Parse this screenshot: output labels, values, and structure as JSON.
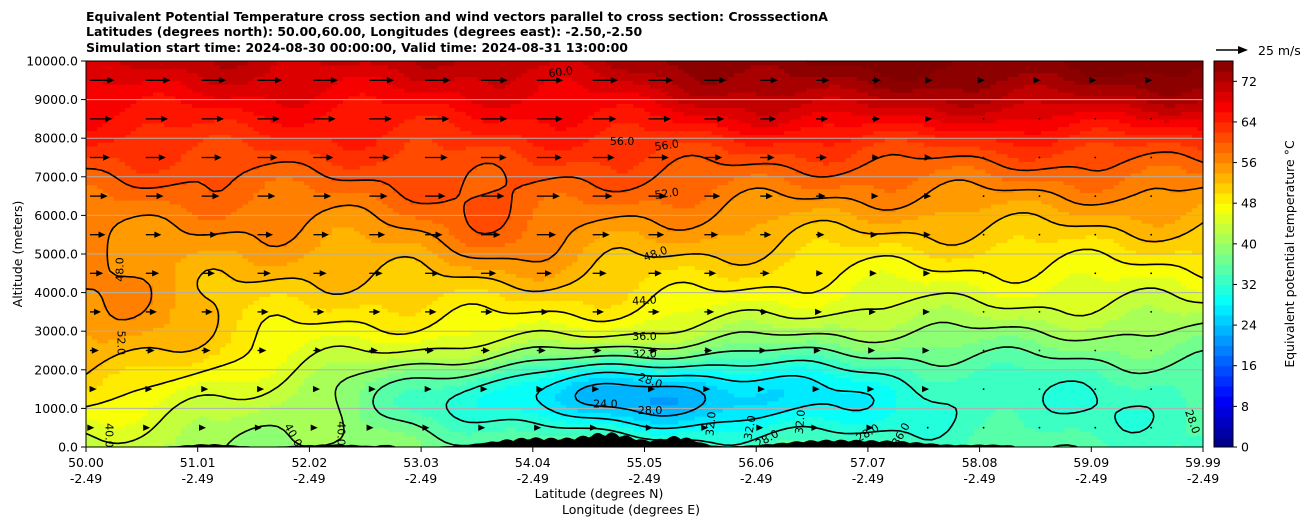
{
  "chart_data": {
    "type": "heatmap",
    "title_lines": [
      "Equivalent Potential Temperature cross section and wind vectors parallel to cross section: CrosssectionA",
      "Latitudes (degrees north): 50.00,60.00, Longitudes (degrees east): -2.50,-2.50",
      "Simulation start time: 2024-08-30 00:00:00, Valid time: 2024-08-31 13:00:00"
    ],
    "ylabel": "Altitude (meters)",
    "xlabel_lat": "Latitude (degrees N)",
    "xlabel_lon": "Longitude (degrees E)",
    "ylim": [
      0,
      10000
    ],
    "xlim": [
      0,
      10
    ],
    "yticks": [
      {
        "value": 0,
        "label": "0.0"
      },
      {
        "value": 1000,
        "label": "1000.0"
      },
      {
        "value": 2000,
        "label": "2000.0"
      },
      {
        "value": 3000,
        "label": "3000.0"
      },
      {
        "value": 4000,
        "label": "4000.0"
      },
      {
        "value": 5000,
        "label": "5000.0"
      },
      {
        "value": 6000,
        "label": "6000.0"
      },
      {
        "value": 7000,
        "label": "7000.0"
      },
      {
        "value": 8000,
        "label": "8000.0"
      },
      {
        "value": 9000,
        "label": "9000.0"
      },
      {
        "value": 10000,
        "label": "10000.0"
      }
    ],
    "xticks": [
      {
        "value": 0.0,
        "lat": "50.00",
        "lon": "-2.49"
      },
      {
        "value": 1.0,
        "lat": "51.01",
        "lon": "-2.49"
      },
      {
        "value": 2.0,
        "lat": "52.02",
        "lon": "-2.49"
      },
      {
        "value": 3.0,
        "lat": "53.03",
        "lon": "-2.49"
      },
      {
        "value": 4.0,
        "lat": "54.04",
        "lon": "-2.49"
      },
      {
        "value": 5.0,
        "lat": "55.05",
        "lon": "-2.49"
      },
      {
        "value": 6.0,
        "lat": "56.06",
        "lon": "-2.49"
      },
      {
        "value": 7.0,
        "lat": "57.07",
        "lon": "-2.49"
      },
      {
        "value": 8.0,
        "lat": "58.08",
        "lon": "-2.49"
      },
      {
        "value": 9.0,
        "lat": "59.09",
        "lon": "-2.49"
      },
      {
        "value": 10.0,
        "lat": "59.99",
        "lon": "-2.49"
      }
    ],
    "grid": "horizontal",
    "colorbar": {
      "label": "Equivalent potential temperature $^\\circ$C",
      "label_text": "Equivalent potential temperature °C",
      "min": 0,
      "max": 76,
      "step": 2,
      "ticks": [
        {
          "value": 0,
          "label": "0"
        },
        {
          "value": 8,
          "label": "8"
        },
        {
          "value": 16,
          "label": "16"
        },
        {
          "value": 24,
          "label": "24"
        },
        {
          "value": 32,
          "label": "32"
        },
        {
          "value": 40,
          "label": "40"
        },
        {
          "value": 48,
          "label": "48"
        },
        {
          "value": 56,
          "label": "56"
        },
        {
          "value": 64,
          "label": "64"
        },
        {
          "value": 72,
          "label": "72"
        }
      ],
      "colormap": "jet"
    },
    "quiver_key": {
      "label": "25 m/s",
      "speed": 25
    },
    "contour_levels": [
      24,
      28,
      32,
      36,
      40,
      44,
      48,
      52,
      56,
      60
    ],
    "contour_labels": [
      {
        "text": "60.0",
        "x": 4.25,
        "y": 9700,
        "rot": -8
      },
      {
        "text": "56.0",
        "x": 4.8,
        "y": 7900,
        "rot": 0
      },
      {
        "text": "56.0",
        "x": 5.2,
        "y": 7800,
        "rot": -8
      },
      {
        "text": "52.0",
        "x": 5.2,
        "y": 6550,
        "rot": -8
      },
      {
        "text": "48.0",
        "x": 5.1,
        "y": 4990,
        "rot": -20
      },
      {
        "text": "48.0",
        "x": 0.31,
        "y": 4600,
        "rot": -90
      },
      {
        "text": "44.0",
        "x": 5.0,
        "y": 3780,
        "rot": -3
      },
      {
        "text": "36.0",
        "x": 5.0,
        "y": 2850,
        "rot": 0
      },
      {
        "text": "32.0",
        "x": 5.0,
        "y": 2400,
        "rot": 0
      },
      {
        "text": "52.0",
        "x": 0.31,
        "y": 2700,
        "rot": 90
      },
      {
        "text": "28.0",
        "x": 5.05,
        "y": 1700,
        "rot": 20
      },
      {
        "text": "24.0",
        "x": 4.65,
        "y": 1100,
        "rot": 0
      },
      {
        "text": "28.0",
        "x": 5.05,
        "y": 930,
        "rot": 0
      },
      {
        "text": "32.0",
        "x": 5.6,
        "y": 600,
        "rot": -85
      },
      {
        "text": "32.0",
        "x": 6.4,
        "y": 650,
        "rot": -85
      },
      {
        "text": "28.0",
        "x": 6.1,
        "y": 200,
        "rot": -30
      },
      {
        "text": "32.0",
        "x": 5.95,
        "y": 500,
        "rot": -80
      },
      {
        "text": "28.0",
        "x": 7.0,
        "y": 350,
        "rot": -30
      },
      {
        "text": "36.0",
        "x": 7.3,
        "y": 320,
        "rot": -60
      },
      {
        "text": "40.0",
        "x": 0.2,
        "y": 300,
        "rot": 90
      },
      {
        "text": "40.0",
        "x": 1.85,
        "y": 300,
        "rot": 60
      },
      {
        "text": "40.0",
        "x": 2.28,
        "y": 350,
        "rot": 90
      },
      {
        "text": "28.0",
        "x": 9.9,
        "y": 650,
        "rot": 70
      }
    ]
  }
}
